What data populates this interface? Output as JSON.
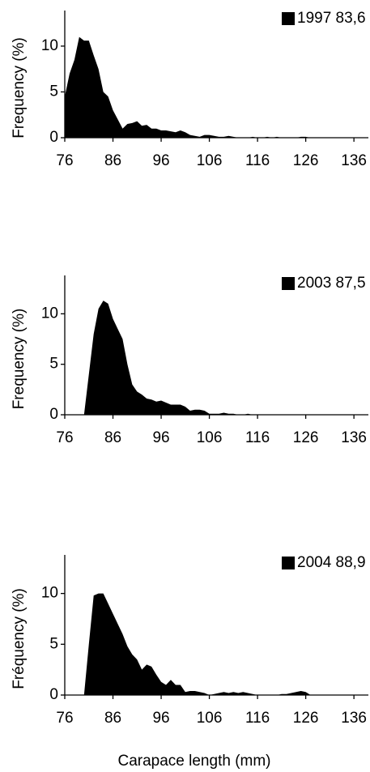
{
  "chart_data": [
    {
      "type": "area",
      "ylabel": "Frequency (%)",
      "x": [
        76,
        77,
        78,
        79,
        80,
        81,
        82,
        83,
        84,
        85,
        86,
        87,
        88,
        89,
        90,
        91,
        92,
        93,
        94,
        95,
        96,
        97,
        98,
        99,
        100,
        101,
        102,
        103,
        104,
        105,
        106,
        107,
        108,
        109,
        110,
        111,
        112,
        113,
        114,
        115,
        116,
        117,
        118,
        119,
        120,
        121,
        122,
        123,
        124,
        125,
        126,
        127,
        128,
        129,
        130
      ],
      "series": [
        {
          "name": "1997  83,6 mm",
          "color": "#000000",
          "values": [
            4.5,
            7,
            8.5,
            11,
            10.6,
            10.6,
            9,
            7.5,
            5,
            4.5,
            3,
            2,
            1,
            1.5,
            1.6,
            1.8,
            1.3,
            1.4,
            1,
            1,
            0.8,
            0.8,
            0.7,
            0.6,
            0.8,
            0.6,
            0.3,
            0.2,
            0.1,
            0.3,
            0.3,
            0.2,
            0.1,
            0.1,
            0.2,
            0.1,
            0,
            0,
            0,
            0.1,
            0,
            0,
            0.1,
            0,
            0.1,
            0,
            0,
            0,
            0,
            0.1,
            0.1,
            0,
            0,
            0,
            0
          ]
        }
      ],
      "xlim": [
        76,
        139
      ],
      "ylim": [
        0,
        13
      ],
      "xticks": [
        76,
        86,
        96,
        106,
        116,
        126,
        136
      ],
      "yticks": [
        0,
        5,
        10
      ]
    },
    {
      "type": "area",
      "ylabel": "Frequency (%)",
      "x": [
        80,
        81,
        82,
        83,
        84,
        85,
        86,
        87,
        88,
        89,
        90,
        91,
        92,
        93,
        94,
        95,
        96,
        97,
        98,
        99,
        100,
        101,
        102,
        103,
        104,
        105,
        106,
        107,
        108,
        109,
        110,
        111,
        112,
        113,
        114,
        115
      ],
      "series": [
        {
          "name": "2003  87,5 mm",
          "color": "#000000",
          "values": [
            0,
            4,
            8,
            10.5,
            11.3,
            11,
            9.5,
            8.5,
            7.5,
            5,
            3,
            2.3,
            2,
            1.6,
            1.5,
            1.3,
            1.4,
            1.2,
            1,
            1,
            1,
            0.8,
            0.4,
            0.5,
            0.5,
            0.4,
            0.1,
            0.1,
            0.1,
            0.2,
            0.1,
            0.1,
            0,
            0,
            0.1,
            0
          ]
        }
      ],
      "xlim": [
        76,
        139
      ],
      "ylim": [
        0,
        13
      ],
      "xticks": [
        76,
        86,
        96,
        106,
        116,
        126,
        136
      ],
      "yticks": [
        0,
        5,
        10
      ]
    },
    {
      "type": "area",
      "ylabel": "Fréquency (%)",
      "xlabel": "Carapace length (mm)",
      "x": [
        80,
        81,
        82,
        83,
        84,
        85,
        86,
        87,
        88,
        89,
        90,
        91,
        92,
        93,
        94,
        95,
        96,
        97,
        98,
        99,
        100,
        101,
        102,
        103,
        104,
        105,
        106,
        107,
        108,
        109,
        110,
        111,
        112,
        113,
        114,
        115,
        116,
        117,
        118,
        119,
        120,
        121,
        122,
        123,
        124,
        125,
        126,
        127
      ],
      "series": [
        {
          "name": "2004  88,9 mm",
          "color": "#000000",
          "values": [
            0,
            5,
            9.8,
            10,
            10,
            9,
            8,
            7,
            6,
            4.8,
            4,
            3.5,
            2.5,
            3,
            2.8,
            2,
            1.3,
            1,
            1.5,
            1,
            1,
            0.3,
            0.4,
            0.4,
            0.3,
            0.2,
            0,
            0.1,
            0.2,
            0.3,
            0.2,
            0.3,
            0.2,
            0.3,
            0.2,
            0.1,
            0,
            0,
            0,
            0,
            0,
            0.1,
            0.1,
            0.2,
            0.3,
            0.4,
            0.3,
            0
          ]
        }
      ],
      "xlim": [
        76,
        139
      ],
      "ylim": [
        0,
        13
      ],
      "xticks": [
        76,
        86,
        96,
        106,
        116,
        126,
        136
      ],
      "yticks": [
        0,
        5,
        10
      ]
    }
  ]
}
